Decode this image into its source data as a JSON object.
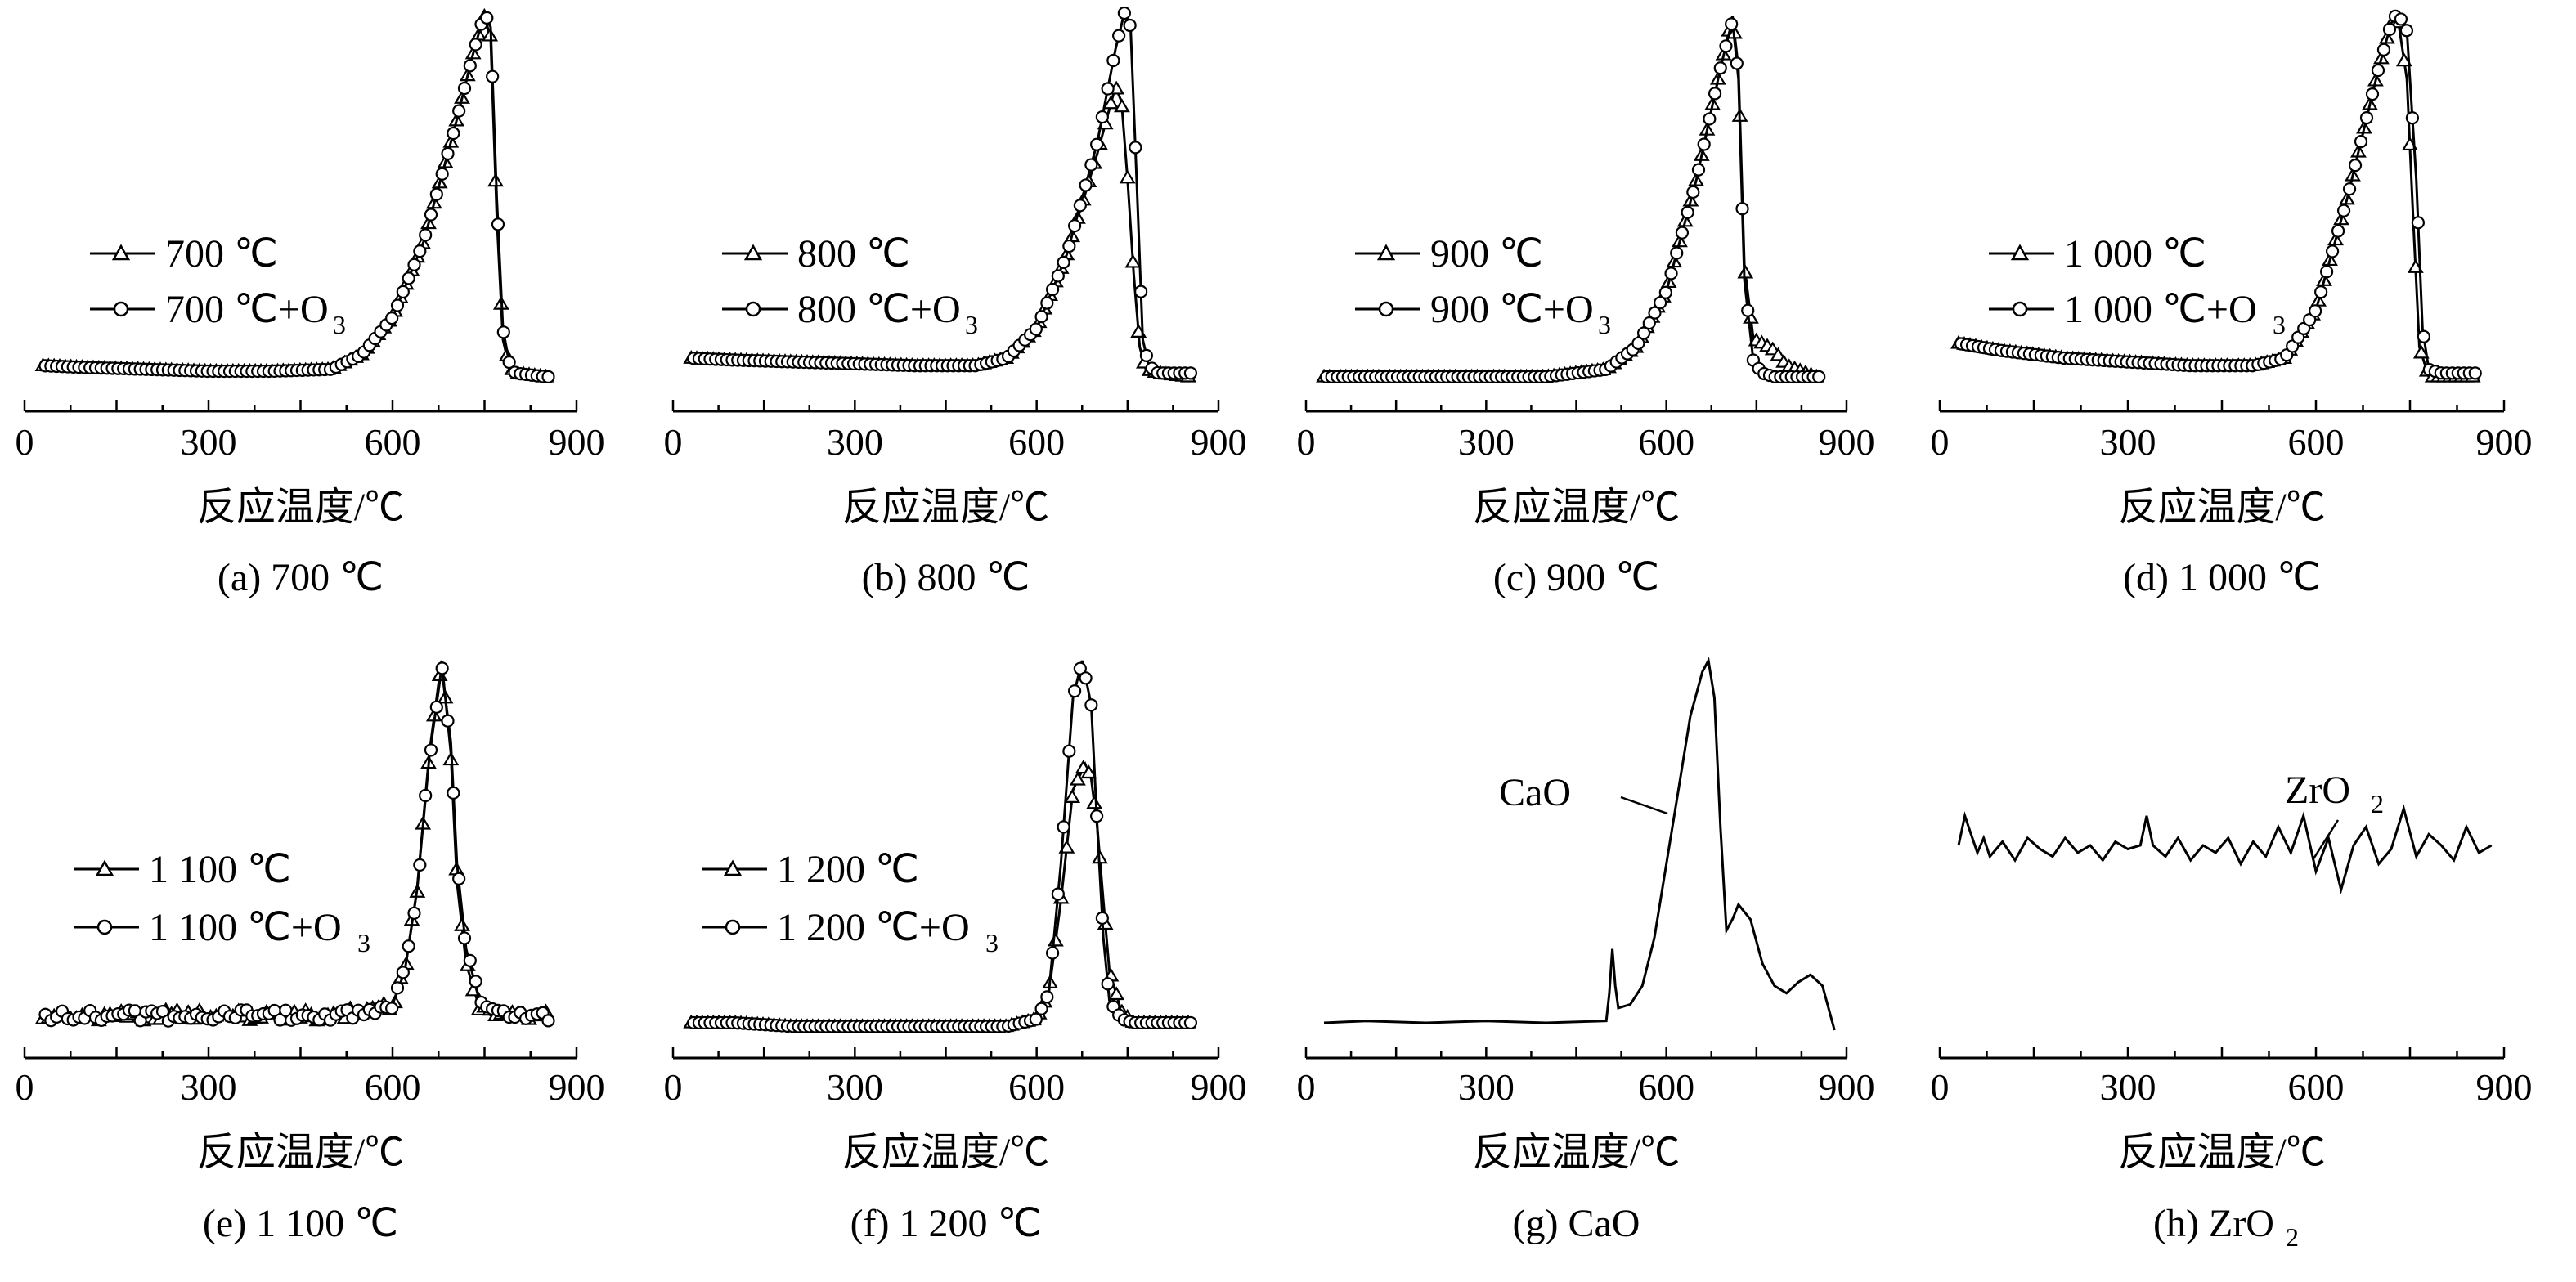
{
  "figure": {
    "x_axis_label": "反应温度/℃"
  },
  "chart_data": [
    {
      "id": "a",
      "type": "line",
      "caption": "(a) 700 ℃",
      "xlim": [
        0,
        900
      ],
      "xticks": [
        0,
        300,
        600,
        900
      ],
      "ylim": [
        0,
        1
      ],
      "xlabel": "反应温度/℃",
      "series": [
        {
          "name": "700 ℃",
          "marker": "triangle",
          "x": [
            30,
            100,
            200,
            300,
            400,
            500,
            550,
            600,
            650,
            700,
            730,
            750,
            760,
            770,
            780,
            790,
            800,
            850
          ],
          "y": [
            0.05,
            0.045,
            0.04,
            0.035,
            0.035,
            0.04,
            0.08,
            0.18,
            0.38,
            0.68,
            0.88,
            0.99,
            0.93,
            0.45,
            0.12,
            0.05,
            0.03,
            0.02
          ]
        },
        {
          "name": "700 ℃+O₃",
          "marker": "circle",
          "x": [
            30,
            100,
            200,
            300,
            400,
            500,
            550,
            600,
            650,
            700,
            730,
            750,
            760,
            770,
            780,
            790,
            800,
            850
          ],
          "y": [
            0.05,
            0.045,
            0.04,
            0.035,
            0.035,
            0.04,
            0.08,
            0.18,
            0.38,
            0.68,
            0.88,
            1.0,
            0.96,
            0.5,
            0.15,
            0.06,
            0.03,
            0.02
          ]
        }
      ]
    },
    {
      "id": "b",
      "type": "line",
      "caption": "(b) 800 ℃",
      "xlim": [
        0,
        900
      ],
      "xticks": [
        0,
        300,
        600,
        900
      ],
      "ylim": [
        0,
        1
      ],
      "xlabel": "反应温度/℃",
      "series": [
        {
          "name": "800 ℃",
          "marker": "triangle",
          "x": [
            30,
            100,
            200,
            300,
            400,
            500,
            550,
            600,
            650,
            700,
            730,
            740,
            750,
            760,
            770,
            780,
            800,
            850
          ],
          "y": [
            0.07,
            0.065,
            0.06,
            0.055,
            0.05,
            0.05,
            0.07,
            0.15,
            0.35,
            0.62,
            0.8,
            0.76,
            0.55,
            0.3,
            0.1,
            0.04,
            0.03,
            0.02
          ]
        },
        {
          "name": "800 ℃+O₃",
          "marker": "circle",
          "x": [
            30,
            100,
            200,
            300,
            400,
            500,
            550,
            600,
            650,
            700,
            730,
            745,
            755,
            765,
            775,
            785,
            800,
            850
          ],
          "y": [
            0.07,
            0.065,
            0.06,
            0.055,
            0.05,
            0.05,
            0.07,
            0.15,
            0.35,
            0.65,
            0.9,
            1.0,
            0.96,
            0.55,
            0.12,
            0.05,
            0.03,
            0.03
          ]
        }
      ]
    },
    {
      "id": "c",
      "type": "line",
      "caption": "(c) 900 ℃",
      "xlim": [
        0,
        900
      ],
      "xticks": [
        0,
        300,
        600,
        900
      ],
      "ylim": [
        0,
        1
      ],
      "xlabel": "反应温度/℃",
      "series": [
        {
          "name": "900 ℃",
          "marker": "triangle",
          "x": [
            30,
            100,
            200,
            300,
            400,
            500,
            550,
            600,
            650,
            690,
            710,
            720,
            730,
            745,
            760,
            780,
            800,
            850
          ],
          "y": [
            0.02,
            0.02,
            0.02,
            0.02,
            0.02,
            0.04,
            0.1,
            0.25,
            0.55,
            0.85,
            0.99,
            0.85,
            0.32,
            0.12,
            0.11,
            0.09,
            0.05,
            0.02
          ]
        },
        {
          "name": "900 ℃+O₃",
          "marker": "circle",
          "x": [
            30,
            100,
            200,
            300,
            400,
            500,
            550,
            600,
            650,
            690,
            710,
            720,
            730,
            745,
            760,
            780,
            800,
            850
          ],
          "y": [
            0.02,
            0.02,
            0.02,
            0.02,
            0.02,
            0.04,
            0.1,
            0.25,
            0.55,
            0.85,
            0.98,
            0.82,
            0.28,
            0.06,
            0.03,
            0.02,
            0.02,
            0.02
          ]
        }
      ]
    },
    {
      "id": "d",
      "type": "line",
      "caption": "(d) 1 000 ℃",
      "xlim": [
        0,
        900
      ],
      "xticks": [
        0,
        300,
        600,
        900
      ],
      "ylim": [
        0,
        1
      ],
      "xlabel": "反应温度/℃",
      "series": [
        {
          "name": "1 000 ℃",
          "marker": "triangle",
          "x": [
            30,
            100,
            200,
            300,
            400,
            500,
            550,
            600,
            650,
            700,
            720,
            730,
            745,
            755,
            765,
            780,
            800,
            850
          ],
          "y": [
            0.11,
            0.09,
            0.07,
            0.06,
            0.05,
            0.05,
            0.07,
            0.2,
            0.5,
            0.85,
            0.97,
            0.99,
            0.82,
            0.45,
            0.1,
            0.02,
            0.02,
            0.02
          ]
        },
        {
          "name": "1 000 ℃+O₃",
          "marker": "circle",
          "x": [
            30,
            100,
            200,
            300,
            400,
            500,
            550,
            600,
            650,
            700,
            720,
            730,
            745,
            760,
            770,
            780,
            800,
            850
          ],
          "y": [
            0.11,
            0.09,
            0.07,
            0.06,
            0.05,
            0.05,
            0.07,
            0.2,
            0.5,
            0.85,
            0.97,
            1.0,
            0.95,
            0.55,
            0.15,
            0.04,
            0.03,
            0.03
          ]
        }
      ]
    },
    {
      "id": "e",
      "type": "line",
      "caption": "(e) 1 100 ℃",
      "xlim": [
        0,
        900
      ],
      "xticks": [
        0,
        300,
        600,
        900
      ],
      "ylim": [
        0,
        1
      ],
      "xlabel": "反应温度/℃",
      "series": [
        {
          "name": "1 100 ℃",
          "marker": "triangle",
          "x": [
            30,
            100,
            200,
            300,
            400,
            500,
            550,
            600,
            620,
            640,
            660,
            680,
            695,
            705,
            720,
            740,
            760,
            800,
            850
          ],
          "y": [
            0.04,
            0.04,
            0.04,
            0.04,
            0.04,
            0.04,
            0.05,
            0.07,
            0.16,
            0.38,
            0.75,
            1.0,
            0.75,
            0.4,
            0.18,
            0.07,
            0.04,
            0.04,
            0.04
          ]
        },
        {
          "name": "1 100 ℃+O₃",
          "marker": "circle",
          "x": [
            30,
            100,
            200,
            300,
            400,
            500,
            550,
            600,
            620,
            640,
            660,
            680,
            695,
            705,
            720,
            740,
            760,
            800,
            850
          ],
          "y": [
            0.04,
            0.04,
            0.04,
            0.04,
            0.04,
            0.04,
            0.05,
            0.07,
            0.16,
            0.38,
            0.74,
            0.98,
            0.78,
            0.45,
            0.22,
            0.09,
            0.05,
            0.04,
            0.04
          ]
        }
      ]
    },
    {
      "id": "f",
      "type": "line",
      "caption": "(f) 1 200 ℃",
      "xlim": [
        0,
        900
      ],
      "xticks": [
        0,
        300,
        600,
        900
      ],
      "ylim": [
        0,
        1
      ],
      "xlabel": "反应温度/℃",
      "series": [
        {
          "name": "1 200 ℃",
          "marker": "triangle",
          "x": [
            30,
            100,
            200,
            300,
            400,
            500,
            550,
            600,
            620,
            640,
            660,
            680,
            690,
            700,
            710,
            720,
            740,
            760,
            800,
            850
          ],
          "y": [
            0.02,
            0.02,
            0.01,
            0.01,
            0.01,
            0.01,
            0.01,
            0.03,
            0.1,
            0.35,
            0.65,
            0.72,
            0.68,
            0.55,
            0.35,
            0.16,
            0.05,
            0.02,
            0.02,
            0.02
          ]
        },
        {
          "name": "1 200 ℃+O₃",
          "marker": "circle",
          "x": [
            30,
            100,
            200,
            300,
            400,
            500,
            550,
            600,
            620,
            640,
            660,
            675,
            690,
            700,
            710,
            720,
            740,
            760,
            800,
            850
          ],
          "y": [
            0.02,
            0.02,
            0.01,
            0.01,
            0.01,
            0.01,
            0.01,
            0.03,
            0.1,
            0.45,
            0.9,
            1.0,
            0.88,
            0.55,
            0.25,
            0.08,
            0.03,
            0.02,
            0.02,
            0.02
          ]
        }
      ]
    },
    {
      "id": "g",
      "type": "line",
      "caption": "(g) CaO",
      "xlim": [
        0,
        900
      ],
      "xticks": [
        0,
        300,
        600,
        900
      ],
      "ylim": [
        0,
        1
      ],
      "xlabel": "反应温度/℃",
      "series": [
        {
          "name": "",
          "marker": "none",
          "x": [
            30,
            100,
            200,
            300,
            400,
            500,
            505,
            510,
            515,
            520,
            540,
            560,
            580,
            600,
            620,
            640,
            660,
            670,
            680,
            690,
            700,
            710,
            720,
            740,
            760,
            780,
            800,
            820,
            840,
            860,
            880
          ],
          "y": [
            0.02,
            0.025,
            0.02,
            0.025,
            0.02,
            0.025,
            0.1,
            0.22,
            0.12,
            0.06,
            0.07,
            0.12,
            0.25,
            0.45,
            0.65,
            0.85,
            0.97,
            1.0,
            0.9,
            0.55,
            0.27,
            0.3,
            0.34,
            0.3,
            0.18,
            0.12,
            0.1,
            0.13,
            0.15,
            0.12,
            0.0
          ]
        }
      ]
    },
    {
      "id": "h",
      "type": "line",
      "caption": "(h) ZrO₂",
      "xlim": [
        0,
        900
      ],
      "xticks": [
        0,
        300,
        600,
        900
      ],
      "ylim": [
        0,
        1
      ],
      "xlabel": "反应温度/℃",
      "series": [
        {
          "name": "",
          "marker": "none",
          "x": [
            30,
            40,
            50,
            60,
            70,
            80,
            100,
            120,
            140,
            160,
            180,
            200,
            220,
            240,
            260,
            280,
            300,
            320,
            330,
            340,
            360,
            380,
            400,
            420,
            440,
            460,
            480,
            500,
            520,
            540,
            560,
            580,
            600,
            620,
            640,
            660,
            680,
            700,
            720,
            740,
            760,
            780,
            800,
            820,
            840,
            860,
            880
          ],
          "y": [
            0.5,
            0.58,
            0.53,
            0.48,
            0.52,
            0.47,
            0.51,
            0.46,
            0.52,
            0.49,
            0.47,
            0.52,
            0.48,
            0.5,
            0.46,
            0.51,
            0.49,
            0.5,
            0.58,
            0.5,
            0.47,
            0.52,
            0.46,
            0.5,
            0.48,
            0.52,
            0.45,
            0.51,
            0.47,
            0.55,
            0.48,
            0.58,
            0.43,
            0.52,
            0.38,
            0.5,
            0.55,
            0.45,
            0.49,
            0.6,
            0.47,
            0.53,
            0.5,
            0.46,
            0.55,
            0.48,
            0.5
          ]
        }
      ]
    }
  ],
  "panel_labels": {
    "a": [
      "700 ℃",
      "700 ℃+O"
    ],
    "b": [
      "800 ℃",
      "800 ℃+O"
    ],
    "c": [
      "900 ℃",
      "900 ℃+O"
    ],
    "d": [
      "1 000 ℃",
      "1 000 ℃+O"
    ],
    "e": [
      "1 100 ℃",
      "1 100 ℃+O"
    ],
    "f": [
      "1 200 ℃",
      "1 200 ℃+O"
    ]
  },
  "annotations": {
    "g": "CaO",
    "h": "ZrO"
  }
}
